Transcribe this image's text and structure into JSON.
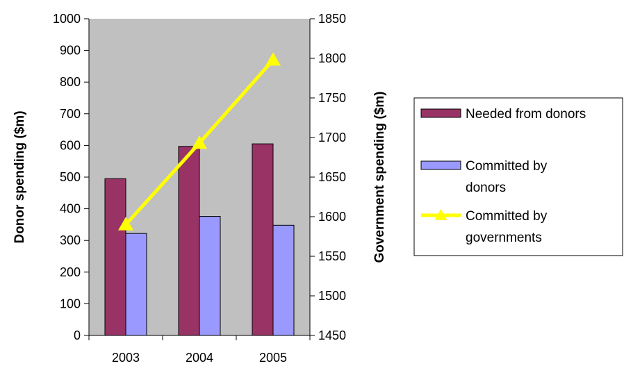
{
  "chart_data": {
    "type": "bar",
    "categories": [
      "2003",
      "2004",
      "2005"
    ],
    "series": [
      {
        "name": "Needed from donors",
        "type": "bar",
        "axis": "left",
        "values": [
          495,
          597,
          605
        ],
        "color": "#993366"
      },
      {
        "name": "Committed by donors",
        "type": "bar",
        "axis": "left",
        "values": [
          322,
          376,
          348
        ],
        "color": "#9999ff"
      },
      {
        "name": "Committed by governments",
        "type": "line",
        "axis": "right",
        "values": [
          1590,
          1693,
          1798
        ],
        "color": "#ffff00",
        "marker": "triangle"
      }
    ],
    "ylabel": "Donor spending ($m)",
    "y2label": "Government spending ($m)",
    "ylim": [
      0,
      1000
    ],
    "y2lim": [
      1450,
      1850
    ],
    "yticks": [
      "0",
      "100",
      "200",
      "300",
      "400",
      "500",
      "600",
      "700",
      "800",
      "900",
      "1000"
    ],
    "y2ticks": [
      "1450",
      "1500",
      "1550",
      "1600",
      "1650",
      "1700",
      "1750",
      "1800",
      "1850"
    ],
    "plot_background": "#c0c0c0",
    "grid": false,
    "legend_placement": "right",
    "legend_labels": [
      [
        "Needed from donors"
      ],
      [
        "Committed by",
        "donors"
      ],
      [
        "Committed by",
        "governments"
      ]
    ]
  }
}
